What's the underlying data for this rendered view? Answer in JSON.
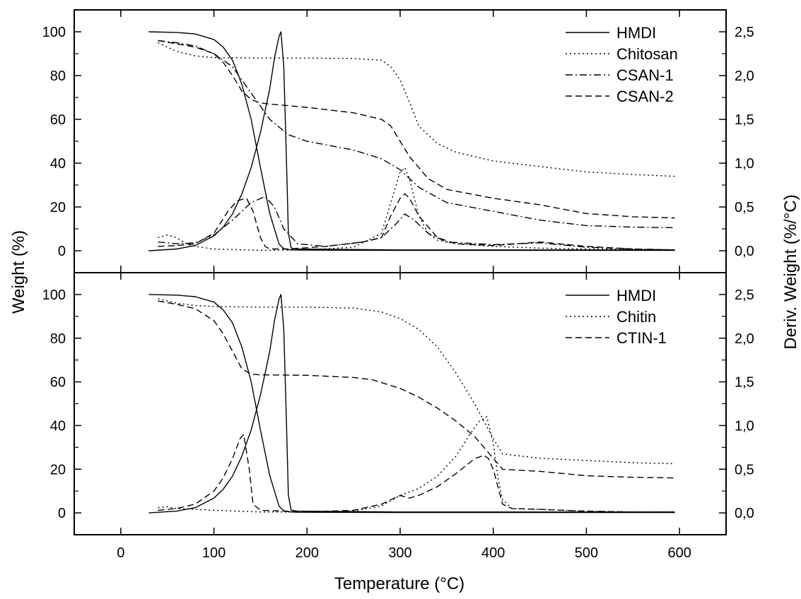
{
  "chart_data": [
    {
      "type": "line",
      "panel": "top",
      "xlabel": "Temperature (°C)",
      "ylabel": "Weight (%)",
      "y2label": "Deriv. Weight (%/°C)",
      "xlim": [
        -50,
        650
      ],
      "ylim": [
        -10,
        110
      ],
      "y2lim": [
        -0.25,
        2.75
      ],
      "xticks": [
        0,
        100,
        200,
        300,
        400,
        500,
        600
      ],
      "yticks": [
        0,
        20,
        40,
        60,
        80,
        100
      ],
      "y2ticks": [
        "0,0",
        "0,5",
        "1,0",
        "1,5",
        "2,0",
        "2,5"
      ],
      "y2tickvals": [
        0,
        0.5,
        1.0,
        1.5,
        2.0,
        2.5
      ],
      "legend_position": "top-right",
      "series": [
        {
          "name": "HMDI",
          "style": "solid",
          "axis": "left",
          "x": [
            30,
            60,
            80,
            100,
            110,
            120,
            130,
            140,
            150,
            160,
            170,
            175,
            180,
            190,
            300,
            400,
            500,
            595
          ],
          "y": [
            100,
            99.7,
            99,
            96.5,
            93,
            87,
            76,
            60,
            38,
            17,
            3,
            1,
            0.5,
            0.3,
            0.2,
            0.2,
            0.2,
            0.2
          ]
        },
        {
          "name": "HMDI",
          "style": "solid",
          "axis": "right",
          "x": [
            30,
            60,
            80,
            100,
            110,
            120,
            130,
            140,
            150,
            160,
            165,
            170,
            172,
            175,
            178,
            180,
            183,
            190,
            300,
            595
          ],
          "y": [
            0,
            0.02,
            0.06,
            0.17,
            0.27,
            0.42,
            0.65,
            0.95,
            1.35,
            1.85,
            2.2,
            2.45,
            2.5,
            2.1,
            1.0,
            0.2,
            0.03,
            0.02,
            0.01,
            0.01
          ]
        },
        {
          "name": "Chitosan",
          "style": "dotted",
          "axis": "left",
          "x": [
            40,
            60,
            80,
            100,
            150,
            200,
            250,
            280,
            290,
            300,
            310,
            320,
            340,
            360,
            400,
            450,
            500,
            550,
            595
          ],
          "y": [
            95,
            91,
            89,
            88.2,
            88,
            88,
            87.8,
            87,
            84,
            78,
            68,
            57,
            49,
            45,
            41,
            38.5,
            36,
            34.8,
            34
          ]
        },
        {
          "name": "Chitosan",
          "style": "dotted",
          "axis": "right",
          "x": [
            40,
            50,
            60,
            70,
            80,
            100,
            150,
            200,
            250,
            280,
            290,
            300,
            305,
            310,
            320,
            330,
            340,
            360,
            400,
            450,
            500,
            550,
            595
          ],
          "y": [
            0.15,
            0.18,
            0.15,
            0.08,
            0.05,
            0.02,
            0.005,
            0.01,
            0.04,
            0.2,
            0.55,
            0.9,
            0.95,
            0.82,
            0.4,
            0.2,
            0.12,
            0.08,
            0.05,
            0.03,
            0.02,
            0.015,
            0.01
          ]
        },
        {
          "name": "CSAN-1",
          "style": "dashdot",
          "axis": "left",
          "x": [
            40,
            60,
            80,
            100,
            120,
            140,
            160,
            180,
            200,
            250,
            280,
            300,
            320,
            350,
            400,
            450,
            500,
            550,
            595
          ],
          "y": [
            96,
            95,
            93.5,
            90,
            84,
            72,
            60,
            53,
            50,
            46,
            42,
            37,
            29,
            22,
            18,
            14,
            11.5,
            10.8,
            10.5
          ]
        },
        {
          "name": "CSAN-1",
          "style": "dashdot",
          "axis": "right",
          "x": [
            40,
            60,
            80,
            100,
            120,
            140,
            155,
            165,
            175,
            190,
            220,
            260,
            280,
            295,
            305,
            315,
            330,
            350,
            400,
            450,
            500,
            550,
            595
          ],
          "y": [
            0.1,
            0.08,
            0.09,
            0.18,
            0.35,
            0.55,
            0.62,
            0.5,
            0.25,
            0.08,
            0.05,
            0.1,
            0.15,
            0.3,
            0.42,
            0.35,
            0.2,
            0.1,
            0.07,
            0.09,
            0.04,
            0.02,
            0.01
          ]
        },
        {
          "name": "CSAN-2",
          "style": "dashed",
          "axis": "left",
          "x": [
            40,
            60,
            80,
            100,
            110,
            120,
            130,
            140,
            150,
            160,
            200,
            250,
            280,
            290,
            300,
            310,
            330,
            350,
            400,
            450,
            500,
            550,
            595
          ],
          "y": [
            96,
            94.5,
            93,
            90,
            86,
            80,
            73,
            69,
            67.5,
            67,
            65.5,
            63,
            60,
            57,
            50,
            43,
            33,
            28,
            24,
            21,
            17,
            15.5,
            15
          ]
        },
        {
          "name": "CSAN-2",
          "style": "dashed",
          "axis": "right",
          "x": [
            40,
            60,
            80,
            100,
            115,
            125,
            135,
            142,
            150,
            155,
            160,
            180,
            220,
            260,
            280,
            290,
            300,
            305,
            310,
            320,
            340,
            360,
            400,
            450,
            500,
            550,
            595
          ],
          "y": [
            0.05,
            0.06,
            0.08,
            0.2,
            0.45,
            0.57,
            0.6,
            0.45,
            0.15,
            0.05,
            0.02,
            0.02,
            0.05,
            0.1,
            0.15,
            0.4,
            0.6,
            0.65,
            0.6,
            0.4,
            0.15,
            0.08,
            0.06,
            0.1,
            0.05,
            0.02,
            0.01
          ]
        }
      ],
      "legend": [
        {
          "label": "HMDI",
          "style": "solid"
        },
        {
          "label": "Chitosan",
          "style": "dotted"
        },
        {
          "label": "CSAN-1",
          "style": "dashdot"
        },
        {
          "label": "CSAN-2",
          "style": "dashed"
        }
      ]
    },
    {
      "type": "line",
      "panel": "bottom",
      "xlabel": "Temperature (°C)",
      "ylabel": "Weight (%)",
      "y2label": "Deriv. Weight (%/°C)",
      "xlim": [
        -50,
        650
      ],
      "ylim": [
        -10,
        110
      ],
      "y2lim": [
        -0.25,
        2.75
      ],
      "xticks": [
        0,
        100,
        200,
        300,
        400,
        500,
        600
      ],
      "yticks": [
        0,
        20,
        40,
        60,
        80,
        100
      ],
      "y2ticks": [
        "0,0",
        "0,5",
        "1,0",
        "1,5",
        "2,0",
        "2,5"
      ],
      "y2tickvals": [
        0,
        0.5,
        1.0,
        1.5,
        2.0,
        2.5
      ],
      "legend_position": "top-right",
      "series": [
        {
          "name": "HMDI",
          "style": "solid",
          "axis": "left",
          "x": [
            30,
            60,
            80,
            100,
            110,
            120,
            130,
            140,
            150,
            160,
            170,
            175,
            180,
            190,
            300,
            400,
            500,
            595
          ],
          "y": [
            100,
            99.7,
            99,
            96.5,
            93,
            87,
            76,
            60,
            38,
            17,
            3,
            1,
            0.5,
            0.3,
            0.2,
            0.2,
            0.2,
            0.2
          ]
        },
        {
          "name": "HMDI",
          "style": "solid",
          "axis": "right",
          "x": [
            30,
            60,
            80,
            100,
            110,
            120,
            130,
            140,
            150,
            160,
            165,
            170,
            172,
            175,
            178,
            180,
            183,
            190,
            300,
            595
          ],
          "y": [
            0,
            0.02,
            0.06,
            0.17,
            0.27,
            0.42,
            0.65,
            0.95,
            1.35,
            1.85,
            2.2,
            2.45,
            2.5,
            2.1,
            1.0,
            0.2,
            0.03,
            0.02,
            0.01,
            0.01
          ]
        },
        {
          "name": "Chitin",
          "style": "dotted",
          "axis": "left",
          "x": [
            40,
            60,
            80,
            100,
            150,
            200,
            250,
            280,
            300,
            320,
            340,
            360,
            380,
            390,
            400,
            410,
            450,
            500,
            550,
            595
          ],
          "y": [
            98,
            96,
            95,
            94.5,
            94.2,
            94.2,
            93.8,
            92,
            89,
            84,
            76,
            64,
            50,
            42,
            34,
            27,
            25,
            24,
            23,
            22.5
          ]
        },
        {
          "name": "Chitin",
          "style": "dotted",
          "axis": "right",
          "x": [
            40,
            50,
            60,
            80,
            100,
            150,
            200,
            250,
            280,
            300,
            320,
            340,
            360,
            375,
            385,
            393,
            400,
            405,
            410,
            420,
            450,
            500,
            550,
            595
          ],
          "y": [
            0.06,
            0.07,
            0.05,
            0.04,
            0.03,
            0.01,
            0.01,
            0.02,
            0.08,
            0.2,
            0.28,
            0.42,
            0.65,
            0.9,
            1.05,
            1.1,
            0.8,
            0.4,
            0.15,
            0.05,
            0.04,
            0.02,
            0.01,
            0.01
          ]
        },
        {
          "name": "CTIN-1",
          "style": "dashed",
          "axis": "left",
          "x": [
            40,
            60,
            80,
            100,
            110,
            120,
            130,
            140,
            150,
            200,
            250,
            270,
            300,
            320,
            340,
            360,
            380,
            400,
            410,
            450,
            500,
            550,
            595
          ],
          "y": [
            97,
            95.5,
            93.5,
            88,
            82,
            74,
            66,
            63.5,
            63.2,
            63,
            62,
            61,
            57,
            53,
            48,
            42,
            35,
            25,
            20,
            19,
            17,
            16.3,
            16
          ]
        },
        {
          "name": "CTIN-1",
          "style": "dashed",
          "axis": "right",
          "x": [
            40,
            60,
            80,
            100,
            110,
            120,
            128,
            132,
            138,
            142,
            150,
            200,
            250,
            280,
            300,
            310,
            320,
            340,
            360,
            380,
            390,
            395,
            400,
            405,
            410,
            420,
            450,
            500,
            550,
            595
          ],
          "y": [
            0.03,
            0.05,
            0.1,
            0.25,
            0.4,
            0.62,
            0.85,
            0.9,
            0.5,
            0.1,
            0.03,
            0.01,
            0.03,
            0.1,
            0.2,
            0.17,
            0.2,
            0.3,
            0.45,
            0.62,
            0.66,
            0.62,
            0.5,
            0.3,
            0.1,
            0.05,
            0.04,
            0.02,
            0.01,
            0.01
          ]
        }
      ],
      "legend": [
        {
          "label": "HMDI",
          "style": "solid"
        },
        {
          "label": "Chitin",
          "style": "dotted"
        },
        {
          "label": "CTIN-1",
          "style": "dashed"
        }
      ]
    }
  ],
  "labels": {
    "xlabel": "Temperature (°C)",
    "ylabel": "Weight (%)",
    "y2label": "Deriv. Weight (%/°C)"
  }
}
